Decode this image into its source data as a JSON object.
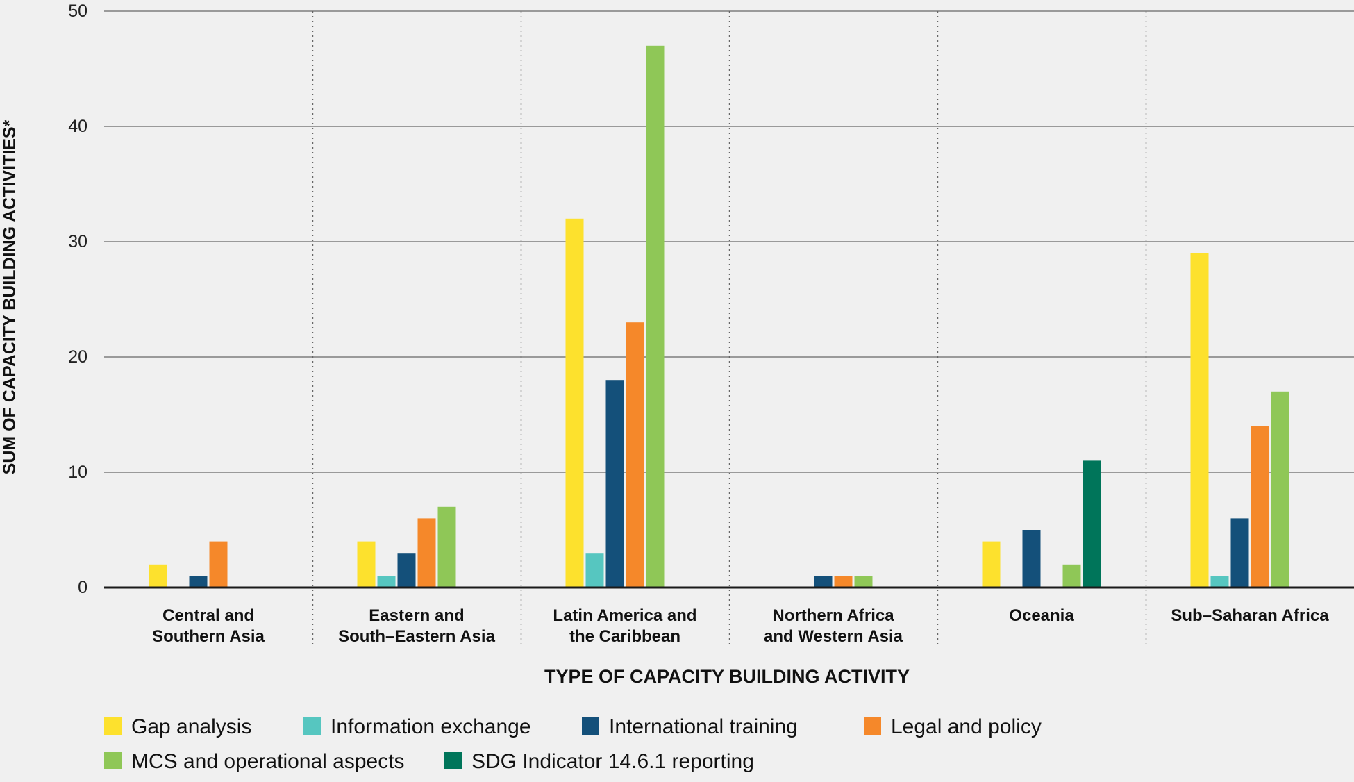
{
  "chart_data": {
    "type": "bar",
    "xlabel": "TYPE OF CAPACITY BUILDING ACTIVITY",
    "ylabel": "SUM OF CAPACITY BUILDING ACTIVITIES*",
    "ylim": [
      0,
      50
    ],
    "yticks": [
      0,
      10,
      20,
      30,
      40,
      50
    ],
    "grid": true,
    "legend_position": "bottom",
    "categories": [
      [
        "Central and",
        "Southern Asia"
      ],
      [
        "Eastern and",
        "South–Eastern Asia"
      ],
      [
        "Latin America and",
        "the Caribbean"
      ],
      [
        "Northern Africa",
        "and Western Asia"
      ],
      [
        "Oceania"
      ],
      [
        "Sub–Saharan Africa"
      ]
    ],
    "series": [
      {
        "name": "Gap analysis",
        "color": "#fde12d",
        "values": [
          2,
          4,
          32,
          0,
          4,
          29
        ]
      },
      {
        "name": "Information exchange",
        "color": "#56c6c0",
        "values": [
          0,
          1,
          3,
          0,
          0,
          1
        ]
      },
      {
        "name": "International training",
        "color": "#14507a",
        "values": [
          1,
          3,
          18,
          1,
          5,
          6
        ]
      },
      {
        "name": "Legal and policy",
        "color": "#f5882a",
        "values": [
          4,
          6,
          23,
          1,
          0,
          14
        ]
      },
      {
        "name": "MCS and operational aspects",
        "color": "#8fc757",
        "values": [
          0,
          7,
          47,
          1,
          2,
          17
        ]
      },
      {
        "name": "SDG Indicator 14.6.1 reporting",
        "color": "#00755a",
        "values": [
          0,
          0,
          0,
          0,
          11,
          0
        ]
      }
    ]
  }
}
